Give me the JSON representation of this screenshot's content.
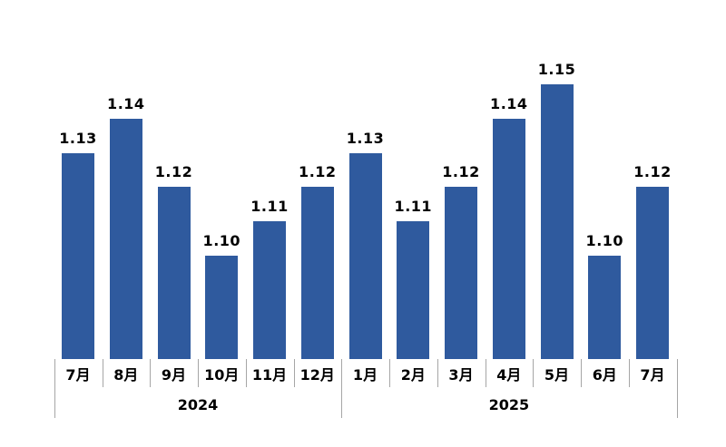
{
  "chart_data": {
    "type": "bar",
    "title": "",
    "xlabel": "",
    "ylabel": "",
    "categories": [
      "7月",
      "8月",
      "9月",
      "10月",
      "11月",
      "12月",
      "1月",
      "2月",
      "3月",
      "4月",
      "5月",
      "6月",
      "7月"
    ],
    "series": [
      {
        "name": "",
        "values": [
          1.13,
          1.14,
          1.12,
          1.1,
          1.11,
          1.12,
          1.13,
          1.11,
          1.12,
          1.14,
          1.15,
          1.1,
          1.12
        ]
      }
    ],
    "value_labels": [
      "1.13",
      "1.14",
      "1.12",
      "1.10",
      "1.11",
      "1.12",
      "1.13",
      "1.11",
      "1.12",
      "1.14",
      "1.15",
      "1.10",
      "1.12"
    ],
    "year_groups": [
      {
        "label": "2024",
        "start": 0,
        "count": 6
      },
      {
        "label": "2025",
        "start": 6,
        "count": 7
      }
    ],
    "ylim": [
      1.07,
      1.16
    ],
    "grid": false,
    "legend": "none",
    "data_labels_position": "outside-end",
    "colors": {
      "bar": "#2F5A9E",
      "value_label": "#000000",
      "category_label": "#000000",
      "year_label": "#000000",
      "tick": "#A6A6A6",
      "background": "#FFFFFF"
    }
  }
}
